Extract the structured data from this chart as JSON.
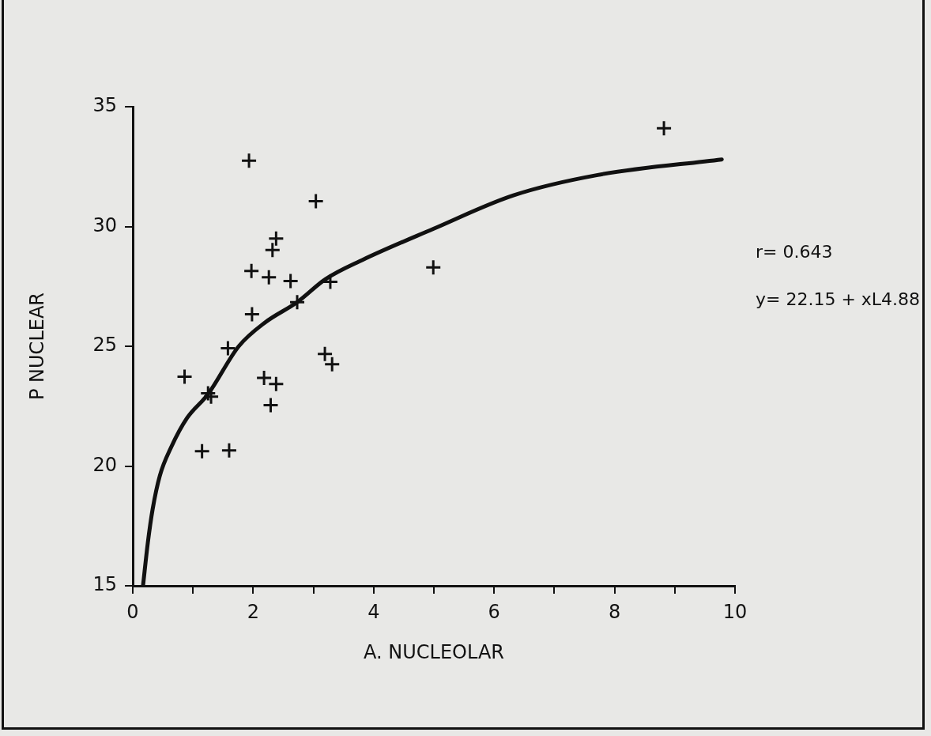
{
  "chart_data": {
    "type": "scatter",
    "xlabel": "A. NUCLEOLAR",
    "ylabel": "P NUCLEAR",
    "xlim": [
      0,
      10
    ],
    "ylim": [
      15,
      35
    ],
    "xticks": [
      0,
      {
        "value": 1,
        "label": null
      },
      2,
      {
        "value": 3,
        "label": null
      },
      4,
      {
        "value": 5,
        "label": null
      },
      6,
      {
        "value": 7,
        "label": null
      },
      8,
      {
        "value": 9,
        "label": null
      },
      10
    ],
    "yticks": [
      15,
      20,
      25,
      30,
      35
    ],
    "series": [
      {
        "marker": "cross",
        "color": "#111111",
        "x": [
          8.82,
          1.93,
          3.04,
          2.38,
          2.32,
          1.97,
          2.26,
          2.62,
          3.28,
          4.99,
          2.73,
          1.98,
          1.58,
          3.19,
          3.31,
          0.86,
          2.18,
          2.38,
          1.25,
          1.3,
          2.29,
          1.15,
          1.6
        ],
        "values": [
          34.1,
          32.75,
          31.06,
          29.5,
          29.02,
          28.14,
          27.88,
          27.72,
          27.69,
          28.29,
          26.84,
          26.34,
          24.92,
          24.68,
          24.25,
          23.73,
          23.68,
          23.42,
          23.04,
          22.9,
          22.54,
          20.62,
          20.65
        ]
      },
      {
        "type": "line",
        "color": "#111111",
        "line_style": "solid",
        "x": [
          0.17,
          0.25,
          0.33,
          0.45,
          0.64,
          0.9,
          1.25,
          1.76,
          2.2,
          2.73,
          3.2,
          3.81,
          4.99,
          6.32,
          7.72,
          9.78
        ],
        "values": [
          15,
          16.8,
          18.2,
          19.6,
          20.8,
          22,
          23,
          25,
          26,
          26.84,
          27.8,
          28.6,
          29.9,
          31.3,
          32.15,
          32.8
        ]
      }
    ],
    "annotations": [
      "r= 0.643",
      "y= 22.15 + xL4.88"
    ]
  }
}
